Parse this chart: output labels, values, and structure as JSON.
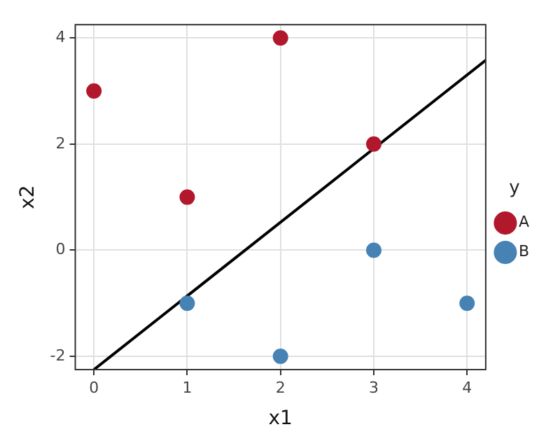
{
  "chart_data": {
    "type": "scatter",
    "xlabel": "x1",
    "ylabel": "x2",
    "legend_title": "y",
    "xlim": [
      -0.2,
      4.2
    ],
    "ylim": [
      -2.25,
      4.25
    ],
    "xticks": [
      0,
      1,
      2,
      3,
      4
    ],
    "yticks": [
      -2,
      0,
      2,
      4
    ],
    "grid": true,
    "legend": "right",
    "marker": "circle",
    "series": [
      {
        "name": "A",
        "color": "#b2182b",
        "x": [
          0,
          1,
          2,
          3
        ],
        "values": [
          3,
          1,
          4,
          2
        ]
      },
      {
        "name": "B",
        "color": "#4682b4",
        "x": [
          1,
          2,
          3,
          4
        ],
        "values": [
          -1,
          -2,
          0,
          -1
        ]
      },
      {
        "type": "line",
        "color": "#000000",
        "marker": "none",
        "line_style": "solid",
        "x": [
          0,
          4.2
        ],
        "values": [
          -2.25,
          3.58
        ]
      }
    ]
  }
}
